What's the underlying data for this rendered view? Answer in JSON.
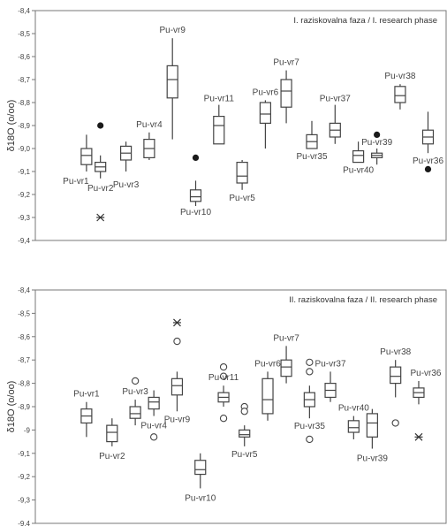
{
  "chart_data": [
    {
      "type": "box",
      "title": "I. raziskovalna faza / I. research phase",
      "ylabel": "δ18O (o/oo)",
      "ylim": [
        -9.4,
        -8.4
      ],
      "yticks": [
        "-8,4",
        "-8,5",
        "-8,6",
        "-8,7",
        "-8,8",
        "-8,9",
        "-9,0",
        "-9,1",
        "-9,2",
        "-9,3",
        "-9,4"
      ],
      "grid": false,
      "boxes": [
        {
          "label": "Pu-vr1",
          "pos": 0.3,
          "q1": -9.07,
          "q3": -9.0,
          "median": -9.03,
          "min": -9.1,
          "max": -8.94,
          "outliers": []
        },
        {
          "label": "Pu-vr2",
          "pos": 0.9,
          "q1": -9.1,
          "q3": -9.06,
          "median": -9.08,
          "min": -9.13,
          "max": -9.03,
          "outliers": [
            {
              "v": -8.9,
              "kind": "filled"
            },
            {
              "v": -9.3,
              "kind": "extreme"
            }
          ]
        },
        {
          "label": "Pu-vr3",
          "pos": 2.0,
          "q1": -9.05,
          "q3": -8.99,
          "median": -9.02,
          "min": -9.1,
          "max": -8.97,
          "outliers": []
        },
        {
          "label": "Pu-vr4",
          "pos": 3.0,
          "q1": -9.04,
          "q3": -8.96,
          "median": -9.0,
          "min": -9.05,
          "max": -8.93,
          "outliers": []
        },
        {
          "label": "Pu-vr9",
          "pos": 4.0,
          "q1": -8.78,
          "q3": -8.64,
          "median": -8.7,
          "min": -8.96,
          "max": -8.52,
          "outliers": []
        },
        {
          "label": "Pu-vr10",
          "pos": 5.0,
          "q1": -9.23,
          "q3": -9.18,
          "median": -9.21,
          "min": -9.25,
          "max": -9.14,
          "outliers": [
            {
              "v": -9.04,
              "kind": "filled"
            }
          ]
        },
        {
          "label": "Pu-vr11",
          "pos": 6.0,
          "q1": -8.98,
          "q3": -8.86,
          "median": -8.9,
          "min": -8.98,
          "max": -8.81,
          "outliers": []
        },
        {
          "label": "Pu-vr5",
          "pos": 7.0,
          "q1": -9.15,
          "q3": -9.06,
          "median": -9.12,
          "min": -9.18,
          "max": -9.05,
          "outliers": []
        },
        {
          "label": "Pu-vr6",
          "pos": 8.0,
          "q1": -8.89,
          "q3": -8.8,
          "median": -8.85,
          "min": -9.0,
          "max": -8.79,
          "outliers": []
        },
        {
          "label": "Pu-vr7",
          "pos": 8.9,
          "q1": -8.82,
          "q3": -8.7,
          "median": -8.75,
          "min": -8.89,
          "max": -8.66,
          "outliers": []
        },
        {
          "label": "Pu-vr35",
          "pos": 10.0,
          "q1": -9.0,
          "q3": -8.94,
          "median": -8.97,
          "min": -9.0,
          "max": -8.88,
          "outliers": []
        },
        {
          "label": "Pu-vr37",
          "pos": 11.0,
          "q1": -8.95,
          "q3": -8.89,
          "median": -8.92,
          "min": -8.98,
          "max": -8.81,
          "outliers": []
        },
        {
          "label": "Pu-vr40",
          "pos": 12.0,
          "q1": -9.06,
          "q3": -9.01,
          "median": -9.03,
          "min": -9.06,
          "max": -8.97,
          "outliers": []
        },
        {
          "label": "Pu-vr39",
          "pos": 12.8,
          "q1": -9.04,
          "q3": -9.02,
          "median": -9.03,
          "min": -9.07,
          "max": -9.0,
          "outliers": [
            {
              "v": -8.94,
              "kind": "filled"
            }
          ]
        },
        {
          "label": "Pu-vr38",
          "pos": 13.8,
          "q1": -8.8,
          "q3": -8.73,
          "median": -8.77,
          "min": -8.83,
          "max": -8.72,
          "outliers": []
        },
        {
          "label": "Pu-vr36",
          "pos": 15.0,
          "q1": -8.98,
          "q3": -8.92,
          "median": -8.95,
          "min": -9.02,
          "max": -8.84,
          "outliers": [
            {
              "v": -9.09,
              "kind": "filled"
            }
          ]
        }
      ]
    },
    {
      "type": "box",
      "title": "II. raziskovalna faza / II. research phase",
      "ylabel": "δ18O (o/oo)",
      "ylim": [
        -9.4,
        -8.4
      ],
      "yticks": [
        "-8,4",
        "-8,5",
        "-8,6",
        "-8,7",
        "-8,8",
        "-8,9",
        "-9",
        "-9,1",
        "-9,2",
        "-9,3",
        "-9,4"
      ],
      "grid": false,
      "boxes": [
        {
          "label": "Pu-vr1",
          "pos": 0.3,
          "q1": -8.97,
          "q3": -8.91,
          "median": -8.94,
          "min": -9.03,
          "max": -8.88,
          "outliers": []
        },
        {
          "label": "Pu-vr2",
          "pos": 1.4,
          "q1": -9.05,
          "q3": -8.98,
          "median": -9.01,
          "min": -9.07,
          "max": -8.95,
          "outliers": []
        },
        {
          "label": "Pu-vr3",
          "pos": 2.4,
          "q1": -8.95,
          "q3": -8.9,
          "median": -8.93,
          "min": -8.98,
          "max": -8.87,
          "outliers": [
            {
              "v": -8.79,
              "kind": "open"
            }
          ]
        },
        {
          "label": "Pu-vr4",
          "pos": 3.2,
          "q1": -8.91,
          "q3": -8.86,
          "median": -8.88,
          "min": -8.94,
          "max": -8.83,
          "outliers": [
            {
              "v": -9.03,
              "kind": "open"
            }
          ]
        },
        {
          "label": "Pu-vr9",
          "pos": 4.2,
          "q1": -8.85,
          "q3": -8.78,
          "median": -8.81,
          "min": -8.92,
          "max": -8.75,
          "outliers": [
            {
              "v": -8.62,
              "kind": "open"
            },
            {
              "v": -8.54,
              "kind": "extreme"
            }
          ]
        },
        {
          "label": "Pu-vr10",
          "pos": 5.2,
          "q1": -9.19,
          "q3": -9.13,
          "median": -9.17,
          "min": -9.25,
          "max": -9.1,
          "outliers": []
        },
        {
          "label": "Pu-vr11",
          "pos": 6.2,
          "q1": -8.88,
          "q3": -8.84,
          "median": -8.86,
          "min": -8.9,
          "max": -8.81,
          "outliers": [
            {
              "v": -8.73,
              "kind": "open"
            },
            {
              "v": -8.77,
              "kind": "open"
            },
            {
              "v": -8.95,
              "kind": "open"
            }
          ]
        },
        {
          "label": "Pu-vr5",
          "pos": 7.1,
          "q1": -9.03,
          "q3": -9.0,
          "median": -9.02,
          "min": -9.07,
          "max": -8.98,
          "outliers": [
            {
              "v": -8.9,
              "kind": "open"
            },
            {
              "v": -8.92,
              "kind": "open"
            }
          ]
        },
        {
          "label": "Pu-vr6",
          "pos": 8.1,
          "q1": -8.93,
          "q3": -8.78,
          "median": -8.87,
          "min": -8.96,
          "max": -8.75,
          "outliers": []
        },
        {
          "label": "Pu-vr7",
          "pos": 8.9,
          "q1": -8.77,
          "q3": -8.7,
          "median": -8.73,
          "min": -8.8,
          "max": -8.64,
          "outliers": []
        },
        {
          "label": "Pu-vr35",
          "pos": 9.9,
          "q1": -8.9,
          "q3": -8.84,
          "median": -8.87,
          "min": -8.95,
          "max": -8.81,
          "outliers": [
            {
              "v": -8.71,
              "kind": "open"
            },
            {
              "v": -8.75,
              "kind": "open"
            },
            {
              "v": -9.04,
              "kind": "open"
            }
          ]
        },
        {
          "label": "Pu-vr37",
          "pos": 10.8,
          "q1": -8.86,
          "q3": -8.8,
          "median": -8.83,
          "min": -8.88,
          "max": -8.75,
          "outliers": []
        },
        {
          "label": "Pu-vr40",
          "pos": 11.8,
          "q1": -9.01,
          "q3": -8.96,
          "median": -8.99,
          "min": -9.04,
          "max": -8.94,
          "outliers": []
        },
        {
          "label": "Pu-vr39",
          "pos": 12.6,
          "q1": -9.03,
          "q3": -8.93,
          "median": -8.97,
          "min": -9.08,
          "max": -8.91,
          "outliers": []
        },
        {
          "label": "Pu-vr38",
          "pos": 13.6,
          "q1": -8.8,
          "q3": -8.73,
          "median": -8.77,
          "min": -8.86,
          "max": -8.7,
          "outliers": [
            {
              "v": -8.97,
              "kind": "open"
            }
          ]
        },
        {
          "label": "Pu-vr36",
          "pos": 14.6,
          "q1": -8.86,
          "q3": -8.82,
          "median": -8.84,
          "min": -8.89,
          "max": -8.79,
          "outliers": [
            {
              "v": -9.03,
              "kind": "extreme"
            }
          ]
        }
      ]
    }
  ]
}
